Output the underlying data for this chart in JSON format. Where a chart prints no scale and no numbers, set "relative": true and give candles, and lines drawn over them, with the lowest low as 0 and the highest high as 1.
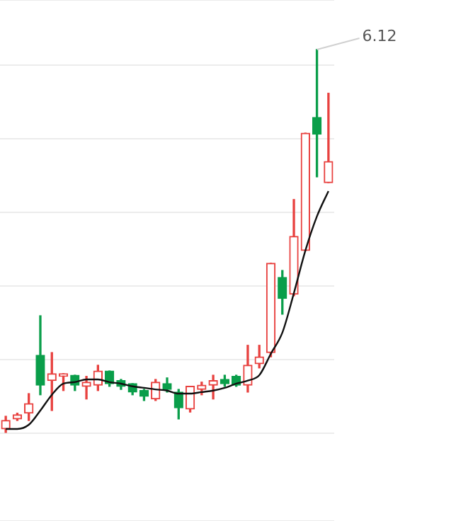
{
  "chart_data": {
    "type": "candlestick",
    "relative": true,
    "grid": "y",
    "categories": [
      null,
      null,
      null,
      null,
      null,
      null,
      null,
      null,
      null,
      null,
      null,
      null,
      null,
      null,
      null,
      null,
      null,
      null,
      null,
      null,
      null,
      null,
      null,
      null,
      null,
      null,
      null,
      null,
      null
    ],
    "ohlc": [
      [
        0.011,
        0.044,
        0,
        0.033
      ],
      [
        0.037,
        0.052,
        0.033,
        0.048
      ],
      [
        0.052,
        0.103,
        0.033,
        0.077
      ],
      [
        0.203,
        0.306,
        0.1,
        0.125
      ],
      [
        0.137,
        0.21,
        0.059,
        0.155
      ],
      [
        0.148,
        0.155,
        0.111,
        0.155
      ],
      [
        0.151,
        0.151,
        0.111,
        0.125
      ],
      [
        0.122,
        0.148,
        0.089,
        0.133
      ],
      [
        0.125,
        0.177,
        0.111,
        0.162
      ],
      [
        0.162,
        0.162,
        0.122,
        0.129
      ],
      [
        0.137,
        0.14,
        0.114,
        0.122
      ],
      [
        0.129,
        0.129,
        0.1,
        0.107
      ],
      [
        0.111,
        0.114,
        0.085,
        0.096
      ],
      [
        0.089,
        0.14,
        0.085,
        0.133
      ],
      [
        0.129,
        0.144,
        0.107,
        0.114
      ],
      [
        0.107,
        0.114,
        0.037,
        0.066
      ],
      [
        0.063,
        0.122,
        0.055,
        0.122
      ],
      [
        0.114,
        0.133,
        0.1,
        0.125
      ],
      [
        0.125,
        0.151,
        0.089,
        0.137
      ],
      [
        0.14,
        0.151,
        0.122,
        0.129
      ],
      [
        0.148,
        0.151,
        0.122,
        0.125
      ],
      [
        0.125,
        0.229,
        0.107,
        0.177
      ],
      [
        0.181,
        0.229,
        0.17,
        0.199
      ],
      [
        0.21,
        0.443,
        0.199,
        0.443
      ],
      [
        0.406,
        0.424,
        0.31,
        0.351
      ],
      [
        0.362,
        0.609,
        0.358,
        0.513
      ],
      [
        0.476,
        0.782,
        0.476,
        0.782
      ],
      [
        0.823,
        1,
        0.668,
        0.779
      ],
      [
        0.653,
        0.886,
        0.653,
        0.708
      ]
    ],
    "colors": [
      "#e8413f",
      "#e8413f",
      "#e8413f",
      "#0a9e4a",
      "#e8413f",
      "#e8413f",
      "#0a9e4a",
      "#e8413f",
      "#e8413f",
      "#0a9e4a",
      "#0a9e4a",
      "#0a9e4a",
      "#0a9e4a",
      "#e8413f",
      "#0a9e4a",
      "#0a9e4a",
      "#e8413f",
      "#e8413f",
      "#e8413f",
      "#0a9e4a",
      "#0a9e4a",
      "#e8413f",
      "#e8413f",
      "#e8413f",
      "#0a9e4a",
      "#e8413f",
      "#e8413f",
      "#0a9e4a",
      "#e8413f"
    ],
    "series": [
      {
        "type": "line",
        "color": "#111111",
        "values": [
          0.011,
          0.011,
          0.022,
          0.059,
          0.1,
          0.129,
          0.133,
          0.14,
          0.14,
          0.133,
          0.129,
          0.122,
          0.118,
          0.114,
          0.111,
          0.103,
          0.103,
          0.107,
          0.111,
          0.118,
          0.129,
          0.137,
          0.151,
          0.207,
          0.262,
          0.365,
          0.476,
          0.565,
          0.631
        ]
      }
    ],
    "annotations": [
      "6.12"
    ]
  }
}
